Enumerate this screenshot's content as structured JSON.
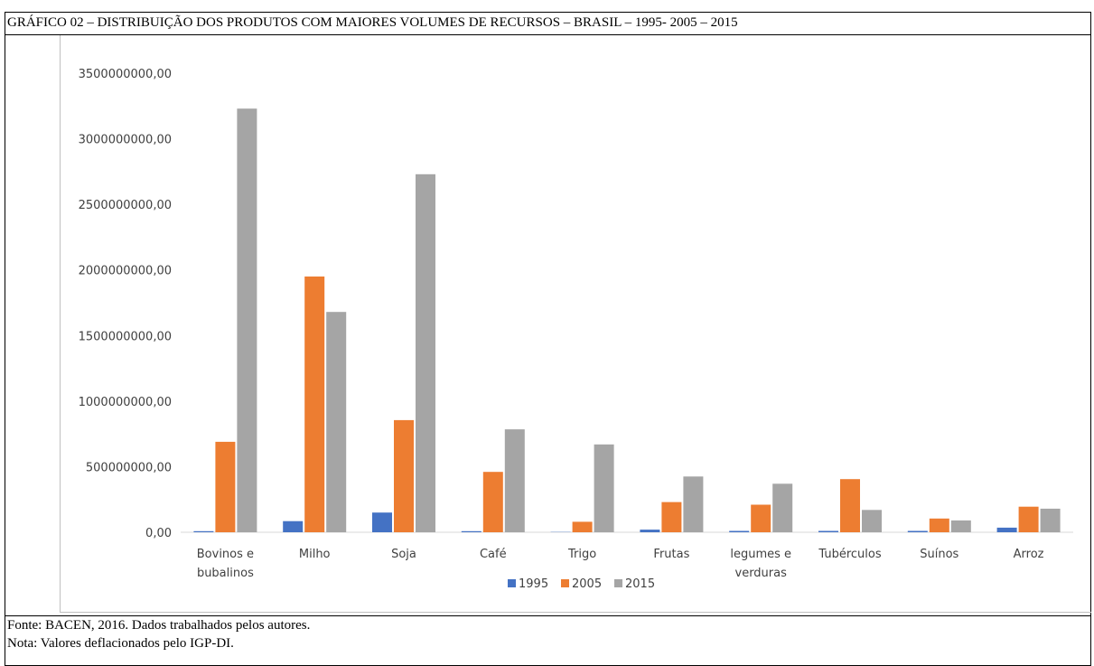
{
  "title": "GRÁFICO 02 – DISTRIBUIÇÃO DOS PRODUTOS COM MAIORES VOLUMES DE RECURSOS – BRASIL – 1995- 2005 – 2015",
  "footer": {
    "source": "Fonte: BACEN, 2016. Dados trabalhados pelos autores.",
    "note": "Nota: Valores deflacionados pelo IGP-DI."
  },
  "chart_data": {
    "type": "bar",
    "categories": [
      [
        "Bovinos e",
        "bubalinos"
      ],
      [
        "Milho"
      ],
      [
        "Soja"
      ],
      [
        "Café"
      ],
      [
        "Trigo"
      ],
      [
        "Frutas"
      ],
      [
        "legumes e",
        "verduras"
      ],
      [
        "Tubérculos"
      ],
      [
        "Suínos"
      ],
      [
        "Arroz"
      ]
    ],
    "series": [
      {
        "name": "1995",
        "color": "#4472c4",
        "values": [
          8000000,
          85000000,
          150000000,
          8000000,
          2000000,
          20000000,
          10000000,
          10000000,
          10000000,
          35000000
        ]
      },
      {
        "name": "2005",
        "color": "#ed7d31",
        "values": [
          690000000,
          1950000000,
          855000000,
          460000000,
          80000000,
          230000000,
          210000000,
          405000000,
          105000000,
          195000000
        ]
      },
      {
        "name": "2015",
        "color": "#a5a5a5",
        "values": [
          3230000000,
          1680000000,
          2730000000,
          785000000,
          670000000,
          425000000,
          370000000,
          170000000,
          90000000,
          180000000
        ]
      }
    ],
    "ylim": [
      0,
      3500000000
    ],
    "yticks": [
      "0,00",
      "500000000,00",
      "1000000000,00",
      "1500000000,00",
      "2000000000,00",
      "2500000000,00",
      "3000000000,00",
      "3500000000,00"
    ],
    "legend_position": "bottom",
    "grid": false
  }
}
